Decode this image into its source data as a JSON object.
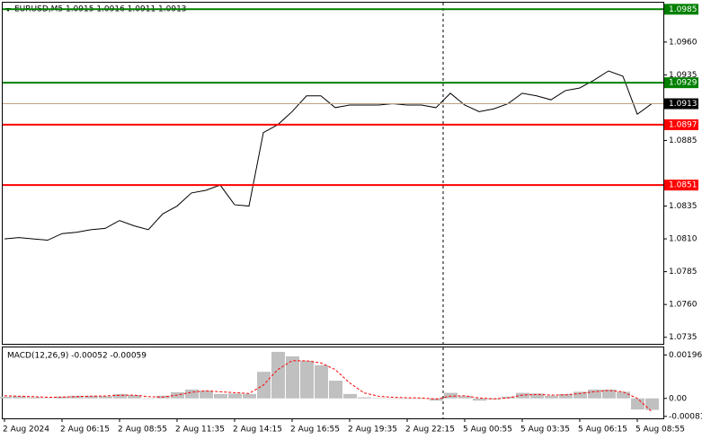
{
  "chart_data": [
    {
      "type": "line",
      "title": "EURUSD,M5  1.0915 1.0916 1.0911 1.0913",
      "categories": [
        "2 Aug 2024",
        null,
        null,
        null,
        "2 Aug 06:15",
        null,
        null,
        null,
        "2 Aug 08:55",
        null,
        null,
        null,
        "2 Aug 11:35",
        null,
        null,
        null,
        "2 Aug 14:15",
        null,
        null,
        null,
        "2 Aug 16:55",
        null,
        null,
        null,
        "2 Aug 19:35",
        null,
        null,
        null,
        "2 Aug 22:15",
        null,
        null,
        null,
        "5 Aug 00:55",
        null,
        null,
        null,
        "5 Aug 03:35",
        null,
        null,
        null,
        "5 Aug 06:15",
        null,
        null,
        null,
        "5 Aug 08:55",
        null
      ],
      "series": [
        {
          "color": "#000000",
          "values": [
            1.081,
            1.0811,
            1.081,
            1.0809,
            1.0814,
            1.0815,
            1.0817,
            1.0818,
            1.0824,
            1.082,
            1.0817,
            1.0829,
            1.0835,
            1.0845,
            1.0847,
            1.0851,
            1.0836,
            1.0835,
            1.0891,
            1.0897,
            1.0907,
            1.0919,
            1.0919,
            1.091,
            1.0912,
            1.0912,
            1.0912,
            1.0913,
            1.0912,
            1.0912,
            1.091,
            1.0921,
            1.0912,
            1.0907,
            1.0909,
            1.0913,
            1.0921,
            1.0919,
            1.0916,
            1.0923,
            1.0925,
            1.0931,
            1.0938,
            1.0934,
            1.0905,
            1.0913
          ]
        }
      ],
      "levels": [
        {
          "value": 1.0985,
          "color": "#008000"
        },
        {
          "value": 1.0929,
          "color": "#008000"
        },
        {
          "value": 1.0897,
          "color": "#ff0000"
        },
        {
          "value": 1.0851,
          "color": "#ff0000"
        }
      ],
      "last_price": {
        "value": 1.0913,
        "color": "#c0a080"
      },
      "ylim": [
        1.073,
        1.099
      ],
      "yticks": [
        {
          "value": 1.096,
          "label": "1.0960"
        },
        1.0935,
        1.0885,
        1.0835,
        {
          "value": 1.081,
          "label": "1.0810"
        },
        1.0785,
        {
          "value": 1.076,
          "label": "1.0760"
        },
        1.0735
      ]
    },
    {
      "type": "bar",
      "title": "MACD(12,26,9) -0.00052 -0.00059",
      "color": "#c0c0c0",
      "values": [
        8e-05,
        0.0001,
        5e-05,
        2e-05,
        8e-05,
        0.00012,
        0.00012,
        0.0001,
        0.0002,
        0.00015,
        -2e-05,
        0.00012,
        0.00028,
        0.0004,
        0.00035,
        0.0002,
        0.00022,
        0.0002,
        0.0012,
        0.0021,
        0.0019,
        0.0017,
        0.0015,
        0.0008,
        0.0002,
        5e-05,
        2e-05,
        0,
        0,
        0,
        -0.0001,
        0.00025,
        0.0001,
        -0.0001,
        -5e-05,
        8e-05,
        0.00025,
        0.00022,
        0.00012,
        0.0002,
        0.0003,
        0.0004,
        0.0004,
        0.0003,
        -0.0005,
        -0.00052
      ],
      "signal_color": "#ff0000",
      "signal_values": [
        0.00012,
        0.0001,
        8e-05,
        5e-05,
        6e-05,
        8e-05,
        0.0001,
        0.00011,
        0.00014,
        0.00015,
        8e-05,
        6e-05,
        0.00015,
        0.00028,
        0.00034,
        0.0003,
        0.00026,
        0.00022,
        0.0006,
        0.0013,
        0.0017,
        0.0017,
        0.0016,
        0.0013,
        0.0007,
        0.00025,
        0.0001,
        5e-05,
        3e-05,
        2e-05,
        -3e-05,
        0.0001,
        0.00012,
        2e-05,
        -2e-05,
        2e-05,
        0.00015,
        0.00018,
        0.00015,
        0.00016,
        0.00022,
        0.0003,
        0.00036,
        0.0003,
        0,
        -0.00059
      ],
      "ylim": [
        -0.0009,
        0.0023
      ],
      "yticks": [
        0.00196,
        {
          "value": 0,
          "label": "0.00"
        },
        -0.00081
      ]
    }
  ]
}
